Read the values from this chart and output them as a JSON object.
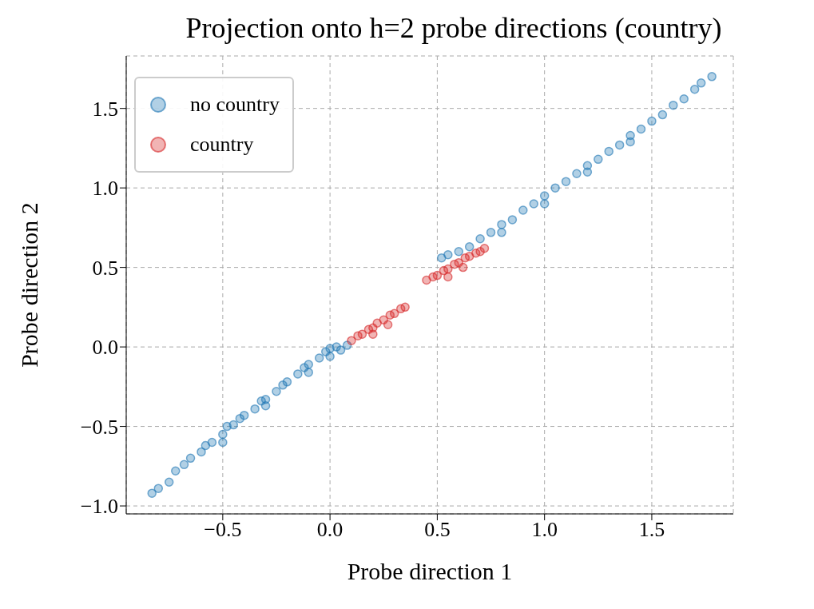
{
  "chart_data": {
    "type": "scatter",
    "title": "Projection onto h=2 probe directions (country)",
    "xlabel": "Probe direction 1",
    "ylabel": "Probe direction 2",
    "xlim": [
      -0.95,
      1.88
    ],
    "ylim": [
      -1.05,
      1.83
    ],
    "xticks": [
      {
        "value": -0.5,
        "label": "−0.5"
      },
      {
        "value": 0,
        "label": "0.0"
      },
      {
        "value": 0.5,
        "label": "0.5"
      },
      {
        "value": 1,
        "label": "1.0"
      },
      {
        "value": 1.5,
        "label": "1.5"
      }
    ],
    "yticks": [
      {
        "value": -1,
        "label": "−1.0"
      },
      {
        "value": -0.5,
        "label": "−0.5"
      },
      {
        "value": 0,
        "label": "0.0"
      },
      {
        "value": 0.5,
        "label": "0.5"
      },
      {
        "value": 1,
        "label": "1.0"
      },
      {
        "value": 1.5,
        "label": "1.5"
      }
    ],
    "grid": true,
    "legend": "top left",
    "marker": "circle",
    "series": [
      {
        "name": "no country",
        "color": "#1f77b4",
        "x": [
          -0.83,
          -0.8,
          -0.75,
          -0.72,
          -0.68,
          -0.65,
          -0.6,
          -0.58,
          -0.55,
          -0.5,
          -0.48,
          -0.45,
          -0.42,
          -0.4,
          -0.35,
          -0.32,
          -0.3,
          -0.25,
          -0.22,
          -0.2,
          -0.15,
          -0.12,
          -0.1,
          -0.05,
          -0.02,
          0,
          0.03,
          0.05,
          0.08,
          -0.5,
          -0.3,
          -0.1,
          0,
          0.52,
          0.55,
          0.6,
          0.65,
          0.7,
          0.75,
          0.8,
          0.85,
          0.9,
          0.95,
          1,
          1.05,
          1.1,
          1.15,
          1.2,
          1.25,
          1.3,
          1.35,
          1.4,
          1.45,
          1.5,
          1.55,
          1.6,
          1.65,
          1.7,
          1.73,
          1.78,
          1,
          1.2,
          1.4,
          0.8
        ],
        "values": [
          -0.92,
          -0.89,
          -0.85,
          -0.78,
          -0.74,
          -0.7,
          -0.66,
          -0.62,
          -0.6,
          -0.55,
          -0.5,
          -0.49,
          -0.45,
          -0.43,
          -0.39,
          -0.34,
          -0.33,
          -0.28,
          -0.24,
          -0.22,
          -0.17,
          -0.13,
          -0.11,
          -0.07,
          -0.03,
          -0.01,
          0,
          -0.02,
          0.01,
          -0.6,
          -0.37,
          -0.16,
          -0.06,
          0.56,
          0.58,
          0.6,
          0.63,
          0.68,
          0.72,
          0.77,
          0.8,
          0.86,
          0.9,
          0.95,
          1,
          1.04,
          1.09,
          1.14,
          1.18,
          1.23,
          1.27,
          1.33,
          1.37,
          1.42,
          1.46,
          1.52,
          1.56,
          1.62,
          1.66,
          1.7,
          0.9,
          1.1,
          1.29,
          0.72
        ]
      },
      {
        "name": "country",
        "color": "#d62728",
        "x": [
          0.1,
          0.13,
          0.15,
          0.18,
          0.2,
          0.22,
          0.25,
          0.28,
          0.3,
          0.33,
          0.35,
          0.2,
          0.27,
          0.45,
          0.48,
          0.5,
          0.53,
          0.55,
          0.58,
          0.6,
          0.63,
          0.65,
          0.68,
          0.7,
          0.72,
          0.55,
          0.62
        ],
        "values": [
          0.04,
          0.07,
          0.08,
          0.11,
          0.12,
          0.15,
          0.17,
          0.2,
          0.21,
          0.24,
          0.25,
          0.08,
          0.14,
          0.42,
          0.44,
          0.45,
          0.48,
          0.49,
          0.52,
          0.53,
          0.56,
          0.57,
          0.59,
          0.6,
          0.62,
          0.44,
          0.5
        ]
      }
    ]
  }
}
